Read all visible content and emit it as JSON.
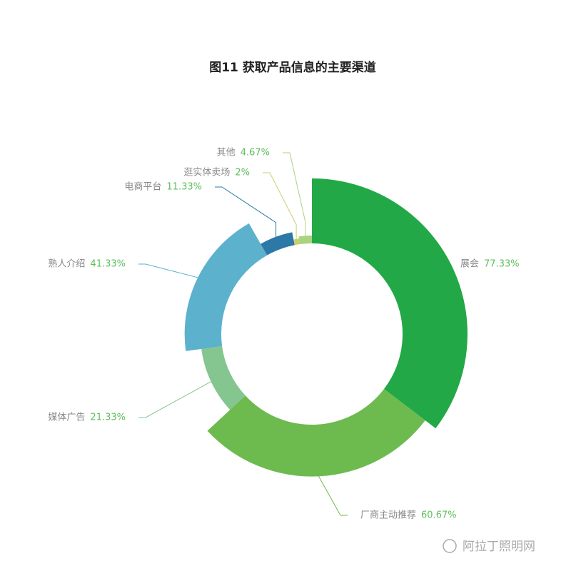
{
  "chart_data": {
    "type": "rose",
    "title": "图11   获取产品信息的主要渠道",
    "categories": [
      "展会",
      "厂商主动推荐",
      "媒体广告",
      "熟人介绍",
      "电商平台",
      "逛实体卖场",
      "其他"
    ],
    "values": [
      77.33,
      60.67,
      21.33,
      41.33,
      11.33,
      2,
      4.67
    ],
    "value_labels": [
      "77.33%",
      "60.67%",
      "21.33%",
      "41.33%",
      "11.33%",
      "2%",
      "4.67%"
    ],
    "colors": [
      "#22a846",
      "#6dbb4f",
      "#85c58f",
      "#5cb1cd",
      "#2c78a6",
      "#c9cf6e",
      "#a9d37e"
    ],
    "watermark": "阿拉丁照明网"
  }
}
